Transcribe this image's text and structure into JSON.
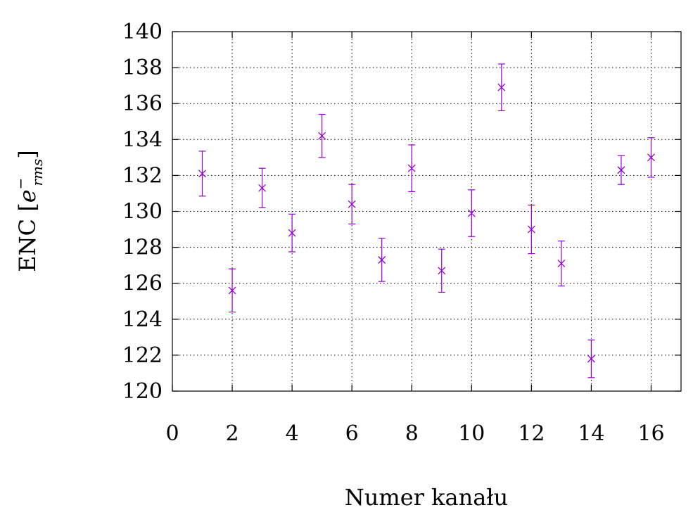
{
  "chart_data": {
    "type": "scatter",
    "xlabel": "Numer kanału",
    "ylabel_main": "ENC [",
    "ylabel_base": "e",
    "ylabel_sup": "−",
    "ylabel_sub": "rms",
    "ylabel_close": "]",
    "xlim": [
      0,
      17
    ],
    "ylim": [
      120,
      140
    ],
    "xticks": [
      0,
      2,
      4,
      6,
      8,
      10,
      12,
      14,
      16
    ],
    "yticks": [
      120,
      122,
      124,
      126,
      128,
      130,
      132,
      134,
      136,
      138,
      140
    ],
    "grid": true,
    "marker_color": "#9400d3",
    "points": [
      {
        "x": 1,
        "y": 132.1,
        "err": 1.25
      },
      {
        "x": 2,
        "y": 125.6,
        "err": 1.2
      },
      {
        "x": 3,
        "y": 131.3,
        "err": 1.1
      },
      {
        "x": 4,
        "y": 128.8,
        "err": 1.05
      },
      {
        "x": 5,
        "y": 134.2,
        "err": 1.2
      },
      {
        "x": 6,
        "y": 130.4,
        "err": 1.1
      },
      {
        "x": 7,
        "y": 127.3,
        "err": 1.2
      },
      {
        "x": 8,
        "y": 132.4,
        "err": 1.3
      },
      {
        "x": 9,
        "y": 126.7,
        "err": 1.2
      },
      {
        "x": 10,
        "y": 129.9,
        "err": 1.3
      },
      {
        "x": 11,
        "y": 136.9,
        "err": 1.3
      },
      {
        "x": 12,
        "y": 129.0,
        "err": 1.35
      },
      {
        "x": 13,
        "y": 127.1,
        "err": 1.25
      },
      {
        "x": 14,
        "y": 121.8,
        "err": 1.05
      },
      {
        "x": 15,
        "y": 132.3,
        "err": 0.8
      },
      {
        "x": 16,
        "y": 133.0,
        "err": 1.1
      }
    ]
  }
}
